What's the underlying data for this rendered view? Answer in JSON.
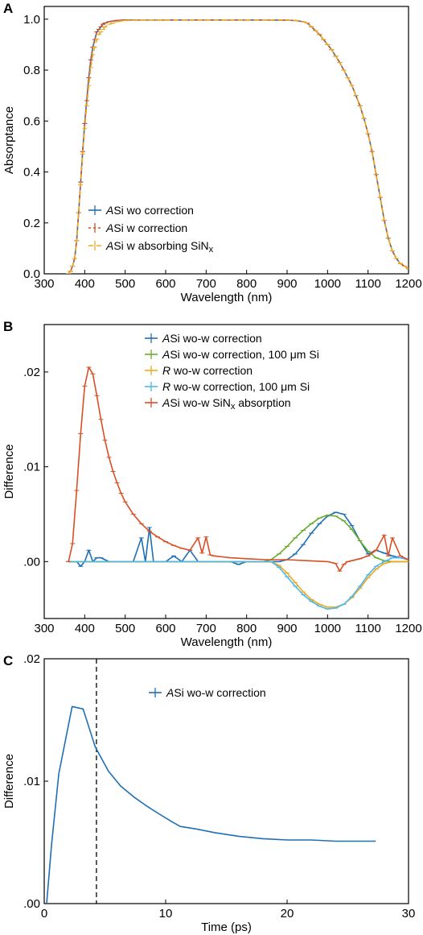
{
  "chart_data": [
    {
      "panel": "A",
      "type": "line",
      "xlabel": "Wavelength (nm)",
      "ylabel": "Absorptance",
      "xlim": [
        300,
        1200
      ],
      "ylim": [
        0,
        1.05
      ],
      "xticks": [
        "300",
        "400",
        "500",
        "600",
        "700",
        "800",
        "900",
        "1000",
        "1100",
        "1200"
      ],
      "yticks": [
        "0.0",
        "0.2",
        "0.4",
        "0.6",
        "0.8",
        "1.0"
      ],
      "legend_position": "lower-left",
      "grid": false,
      "series": [
        {
          "legend": {
            "italic": "A",
            "rest": "Si wo correction"
          },
          "color": "#1f6fb4",
          "dash": "",
          "x": [
            360,
            365,
            370,
            375,
            380,
            385,
            390,
            395,
            400,
            405,
            410,
            415,
            420,
            425,
            430,
            435,
            440,
            445,
            450,
            460,
            470,
            480,
            490,
            500,
            520,
            540,
            560,
            580,
            600,
            650,
            700,
            750,
            800,
            850,
            900,
            920,
            940,
            950,
            960,
            970,
            980,
            990,
            1000,
            1010,
            1020,
            1030,
            1040,
            1050,
            1060,
            1070,
            1080,
            1090,
            1100,
            1110,
            1120,
            1130,
            1140,
            1150,
            1160,
            1170,
            1180,
            1190,
            1200
          ],
          "y": [
            0.0,
            0.01,
            0.03,
            0.06,
            0.13,
            0.24,
            0.36,
            0.48,
            0.59,
            0.68,
            0.77,
            0.84,
            0.89,
            0.92,
            0.95,
            0.96,
            0.97,
            0.98,
            0.985,
            0.99,
            0.993,
            0.995,
            0.996,
            0.997,
            0.997,
            0.997,
            0.997,
            0.997,
            0.997,
            0.997,
            0.997,
            0.997,
            0.997,
            0.997,
            0.996,
            0.995,
            0.99,
            0.985,
            0.97,
            0.955,
            0.94,
            0.92,
            0.9,
            0.88,
            0.855,
            0.83,
            0.8,
            0.77,
            0.74,
            0.7,
            0.66,
            0.61,
            0.55,
            0.48,
            0.39,
            0.3,
            0.21,
            0.14,
            0.09,
            0.06,
            0.04,
            0.03,
            0.02
          ]
        },
        {
          "legend": {
            "italic": "A",
            "rest": "Si w correction"
          },
          "color": "#d94f24",
          "dash": "3,3",
          "x": [
            360,
            365,
            370,
            375,
            380,
            385,
            390,
            395,
            400,
            405,
            410,
            415,
            420,
            425,
            430,
            435,
            440,
            445,
            450,
            460,
            470,
            480,
            490,
            500,
            520,
            540,
            560,
            580,
            600,
            650,
            700,
            750,
            800,
            850,
            900,
            920,
            940,
            950,
            960,
            970,
            980,
            990,
            1000,
            1010,
            1020,
            1030,
            1040,
            1050,
            1060,
            1070,
            1080,
            1090,
            1100,
            1110,
            1120,
            1130,
            1140,
            1150,
            1160,
            1170,
            1180,
            1190,
            1200
          ],
          "y": [
            0.0,
            0.01,
            0.03,
            0.06,
            0.13,
            0.24,
            0.36,
            0.48,
            0.59,
            0.68,
            0.77,
            0.84,
            0.89,
            0.92,
            0.95,
            0.96,
            0.97,
            0.98,
            0.985,
            0.99,
            0.993,
            0.995,
            0.996,
            0.997,
            0.997,
            0.997,
            0.997,
            0.997,
            0.997,
            0.997,
            0.997,
            0.997,
            0.997,
            0.997,
            0.996,
            0.995,
            0.99,
            0.985,
            0.97,
            0.955,
            0.94,
            0.92,
            0.9,
            0.88,
            0.855,
            0.83,
            0.8,
            0.77,
            0.74,
            0.7,
            0.66,
            0.61,
            0.55,
            0.48,
            0.39,
            0.3,
            0.21,
            0.14,
            0.09,
            0.06,
            0.04,
            0.03,
            0.02
          ]
        },
        {
          "legend": {
            "italic": "A",
            "rest": "Si w absorbing SiN",
            "sub": "x"
          },
          "color": "#f0a81f",
          "dash": "6,4",
          "x": [
            360,
            365,
            370,
            375,
            380,
            385,
            390,
            395,
            400,
            405,
            410,
            415,
            420,
            425,
            430,
            435,
            440,
            445,
            450,
            460,
            470,
            480,
            490,
            500,
            520,
            540,
            560,
            580,
            600,
            650,
            700,
            750,
            800,
            850,
            900,
            920,
            940,
            950,
            960,
            970,
            980,
            990,
            1000,
            1010,
            1020,
            1030,
            1040,
            1050,
            1060,
            1070,
            1080,
            1090,
            1100,
            1110,
            1120,
            1130,
            1140,
            1150,
            1160,
            1170,
            1180,
            1190,
            1200
          ],
          "y": [
            0.0,
            0.01,
            0.03,
            0.06,
            0.13,
            0.24,
            0.35,
            0.47,
            0.57,
            0.66,
            0.74,
            0.81,
            0.86,
            0.89,
            0.92,
            0.94,
            0.95,
            0.96,
            0.97,
            0.98,
            0.985,
            0.99,
            0.993,
            0.995,
            0.996,
            0.997,
            0.997,
            0.997,
            0.997,
            0.997,
            0.997,
            0.997,
            0.997,
            0.997,
            0.996,
            0.995,
            0.99,
            0.985,
            0.97,
            0.955,
            0.94,
            0.92,
            0.9,
            0.88,
            0.855,
            0.83,
            0.8,
            0.77,
            0.74,
            0.7,
            0.66,
            0.61,
            0.55,
            0.48,
            0.39,
            0.3,
            0.21,
            0.14,
            0.09,
            0.06,
            0.04,
            0.03,
            0.02
          ]
        }
      ]
    },
    {
      "panel": "B",
      "type": "line",
      "xlabel": "Wavelength (nm)",
      "ylabel": "Difference",
      "xlim": [
        300,
        1200
      ],
      "ylim": [
        -0.006,
        0.025
      ],
      "xticks": [
        "300",
        "400",
        "500",
        "600",
        "700",
        "800",
        "900",
        "1000",
        "1100",
        "1200"
      ],
      "yticks": [
        ".00",
        ".01",
        ".02"
      ],
      "legend_position": "upper-right",
      "grid": false,
      "series": [
        {
          "legend": {
            "italic": "A",
            "rest": "Si wo-w correction"
          },
          "color": "#1f6fb4",
          "dash": "",
          "x": [
            360,
            380,
            390,
            400,
            410,
            420,
            430,
            440,
            460,
            480,
            500,
            520,
            540,
            550,
            560,
            570,
            580,
            600,
            620,
            640,
            660,
            680,
            700,
            720,
            760,
            780,
            800,
            840,
            880,
            900,
            920,
            940,
            960,
            980,
            1000,
            1020,
            1040,
            1060,
            1080,
            1100,
            1120,
            1140,
            1160,
            1180,
            1200
          ],
          "y": [
            0.0,
            0.0,
            -0.0005,
            0.0,
            0.0012,
            0.0,
            0.0004,
            0.0004,
            0.0,
            0.0,
            0.0,
            0.0,
            0.0025,
            0.0,
            0.0036,
            0.0,
            0.0,
            0.0,
            0.0006,
            0.0,
            0.0012,
            0.0,
            0.0,
            0.0,
            0.0,
            -0.0003,
            0.0,
            0.0,
            0.0,
            0.0002,
            0.0008,
            0.0018,
            0.003,
            0.004,
            0.0048,
            0.0052,
            0.005,
            0.0038,
            0.0022,
            0.0008,
            0.0012,
            0.0009,
            0.0006,
            0.0004,
            0.0002
          ]
        },
        {
          "legend": {
            "italic": "A",
            "rest": "Si wo-w correction, 100 μm Si"
          },
          "color": "#6aac2f",
          "dash": "",
          "x": [
            360,
            400,
            500,
            560,
            600,
            640,
            700,
            760,
            800,
            840,
            860,
            880,
            900,
            920,
            940,
            960,
            980,
            1000,
            1020,
            1040,
            1060,
            1080,
            1100,
            1120,
            1140,
            1160,
            1180,
            1200
          ],
          "y": [
            0.0,
            0.0,
            0.0,
            0.0,
            0.0,
            0.0,
            0.0,
            0.0,
            0.0,
            0.0,
            0.0002,
            0.0008,
            0.0016,
            0.0025,
            0.0033,
            0.004,
            0.0046,
            0.0049,
            0.0048,
            0.0043,
            0.0034,
            0.0022,
            0.0011,
            0.0004,
            0.0001,
            0.0,
            0.0,
            0.0
          ]
        },
        {
          "legend": {
            "italic": "R",
            "rest": " wo-w correction"
          },
          "color": "#f0a81f",
          "dash": "",
          "x": [
            360,
            400,
            500,
            600,
            700,
            800,
            860,
            880,
            900,
            920,
            940,
            960,
            980,
            1000,
            1020,
            1040,
            1060,
            1080,
            1100,
            1120,
            1140,
            1160,
            1180,
            1200
          ],
          "y": [
            0.0,
            0.0,
            0.0,
            0.0,
            0.0,
            0.0,
            0.0,
            -0.0004,
            -0.0012,
            -0.0022,
            -0.0032,
            -0.004,
            -0.0045,
            -0.0048,
            -0.0048,
            -0.0045,
            -0.0038,
            -0.0028,
            -0.0017,
            -0.0008,
            -0.0002,
            0.0,
            0.0,
            0.0
          ]
        },
        {
          "legend": {
            "italic": "R",
            "rest": " wo-w correction, 100 μm Si"
          },
          "color": "#4cb8e8",
          "dash": "",
          "x": [
            360,
            400,
            500,
            600,
            700,
            800,
            860,
            880,
            900,
            920,
            940,
            960,
            980,
            1000,
            1020,
            1040,
            1060,
            1080,
            1100,
            1120,
            1140,
            1160,
            1180,
            1200
          ],
          "y": [
            0.0,
            0.0,
            0.0,
            0.0,
            0.0,
            0.0,
            0.0,
            -0.0006,
            -0.0016,
            -0.0026,
            -0.0035,
            -0.0042,
            -0.0047,
            -0.005,
            -0.0049,
            -0.0045,
            -0.0037,
            -0.0026,
            -0.0014,
            -0.0005,
            0.0,
            0.0004,
            0.0004,
            0.0002
          ]
        },
        {
          "legend": {
            "italic": "A",
            "rest": "Si wo-w SiN",
            "sub": "x",
            "tail": " absorption"
          },
          "color": "#d94f24",
          "dash": "",
          "x": [
            360,
            370,
            380,
            390,
            400,
            410,
            420,
            430,
            440,
            450,
            460,
            470,
            480,
            490,
            500,
            520,
            540,
            560,
            580,
            600,
            620,
            640,
            660,
            680,
            690,
            700,
            710,
            720,
            740,
            760,
            800,
            850,
            900,
            950,
            1000,
            1020,
            1030,
            1040,
            1050,
            1060,
            1080,
            1100,
            1120,
            1140,
            1150,
            1160,
            1180,
            1200
          ],
          "y": [
            0.0,
            0.0019,
            0.0075,
            0.0135,
            0.0185,
            0.0205,
            0.0198,
            0.0175,
            0.015,
            0.0128,
            0.011,
            0.0095,
            0.0083,
            0.0072,
            0.0063,
            0.005,
            0.004,
            0.0032,
            0.0026,
            0.0021,
            0.0017,
            0.0014,
            0.0012,
            0.0025,
            0.0009,
            0.0026,
            0.0007,
            0.0006,
            0.0005,
            0.0004,
            0.0003,
            0.0002,
            0.0002,
            0.0001,
            0.0,
            -0.0002,
            -0.001,
            -0.0003,
            0.0,
            0.0001,
            0.0003,
            0.0006,
            0.0012,
            0.0028,
            0.0006,
            0.0025,
            0.0006,
            0.0002
          ]
        }
      ]
    },
    {
      "panel": "C",
      "type": "line",
      "xlabel": "Time (ps)",
      "ylabel": "Difference",
      "xlim": [
        0,
        30
      ],
      "ylim": [
        0,
        0.02
      ],
      "xticks": [
        "0",
        "10",
        "20",
        "30"
      ],
      "yticks": [
        ".00",
        ".01",
        ".02"
      ],
      "legend_position": "upper-right",
      "grid": false,
      "vline": {
        "x": 4.3,
        "style": "dashed",
        "color": "#000000"
      },
      "series": [
        {
          "legend": {
            "italic": "A",
            "rest": "Si wo-w correction"
          },
          "color": "#1f6fb4",
          "dash": "",
          "x": [
            0.2,
            0.6,
            1.2,
            2.3,
            3.2,
            4.2,
            5.3,
            6.3,
            7.4,
            8.4,
            9.5,
            10.5,
            11.2,
            12.5,
            14,
            16,
            18,
            20,
            22,
            24,
            26,
            27.3
          ],
          "y": [
            0.0,
            0.0048,
            0.0106,
            0.0161,
            0.0159,
            0.0128,
            0.0108,
            0.0096,
            0.0087,
            0.008,
            0.0073,
            0.0067,
            0.0063,
            0.0061,
            0.0058,
            0.0055,
            0.0053,
            0.0052,
            0.0052,
            0.0051,
            0.0051,
            0.0051
          ]
        }
      ]
    }
  ]
}
